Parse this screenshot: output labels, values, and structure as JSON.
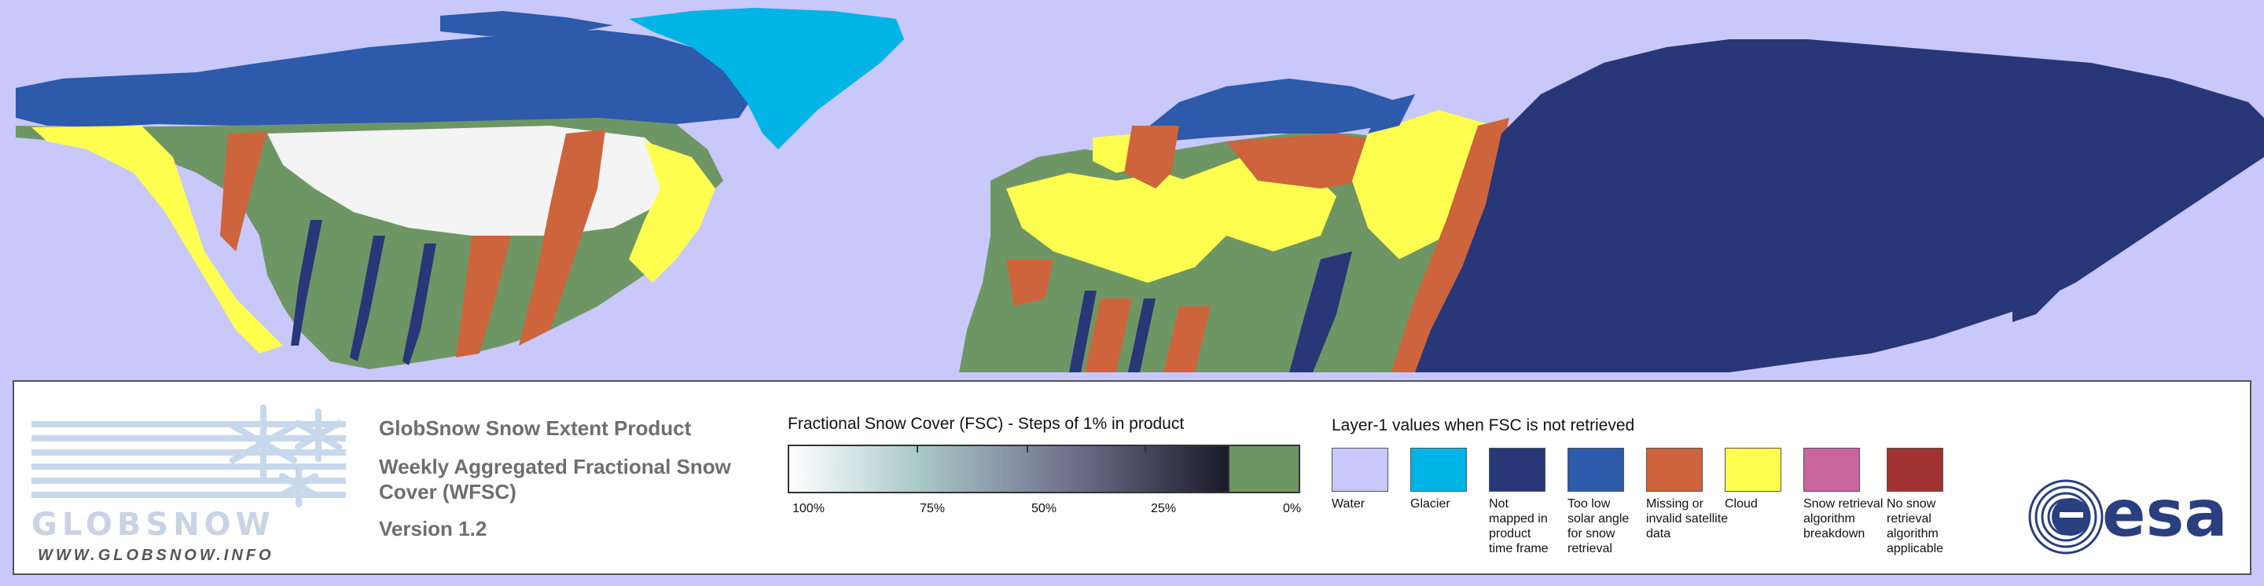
{
  "colors": {
    "water": "#c8c8fa",
    "glacier": "#00b4e6",
    "not_mapped": "#283778",
    "low_solar": "#2d5aaa",
    "missing": "#cd643c",
    "cloud": "#ffff50",
    "algo_breakdown": "#c864a0",
    "no_snow_algo": "#a03232",
    "no_snow": "#6e9664",
    "snow_full": "#ffffff"
  },
  "logo": {
    "wordmark": "GLOBSNOW",
    "url": "WWW.GLOBSNOW.INFO"
  },
  "product": {
    "name": "GlobSnow Snow Extent Product",
    "subtitle": "Weekly Aggregated Fractional Snow Cover (WFSC)",
    "version": "Version 1.2"
  },
  "fsc_scale": {
    "title": "Fractional Snow Cover (FSC) - Steps of 1% in product",
    "ticks": [
      "100%",
      "75%",
      "50%",
      "25%",
      "0%"
    ]
  },
  "layer1": {
    "title": "Layer-1 values when FSC is not retrieved",
    "items": [
      {
        "label": "Water",
        "color": "#c8c8fa"
      },
      {
        "label": "Glacier",
        "color": "#00b4e6"
      },
      {
        "label": "Not mapped in product time frame",
        "color": "#283778"
      },
      {
        "label": "Too low solar angle for snow retrieval",
        "color": "#2d5aaa"
      },
      {
        "label": "Missing or invalid satellite data",
        "color": "#cd643c"
      },
      {
        "label": "Cloud",
        "color": "#ffff50"
      },
      {
        "label": "Snow retrieval algorithm breakdown",
        "color": "#c864a0"
      },
      {
        "label": "No snow retrieval algorithm applicable",
        "color": "#a03232"
      }
    ]
  },
  "esa": {
    "wordmark": "esa"
  }
}
